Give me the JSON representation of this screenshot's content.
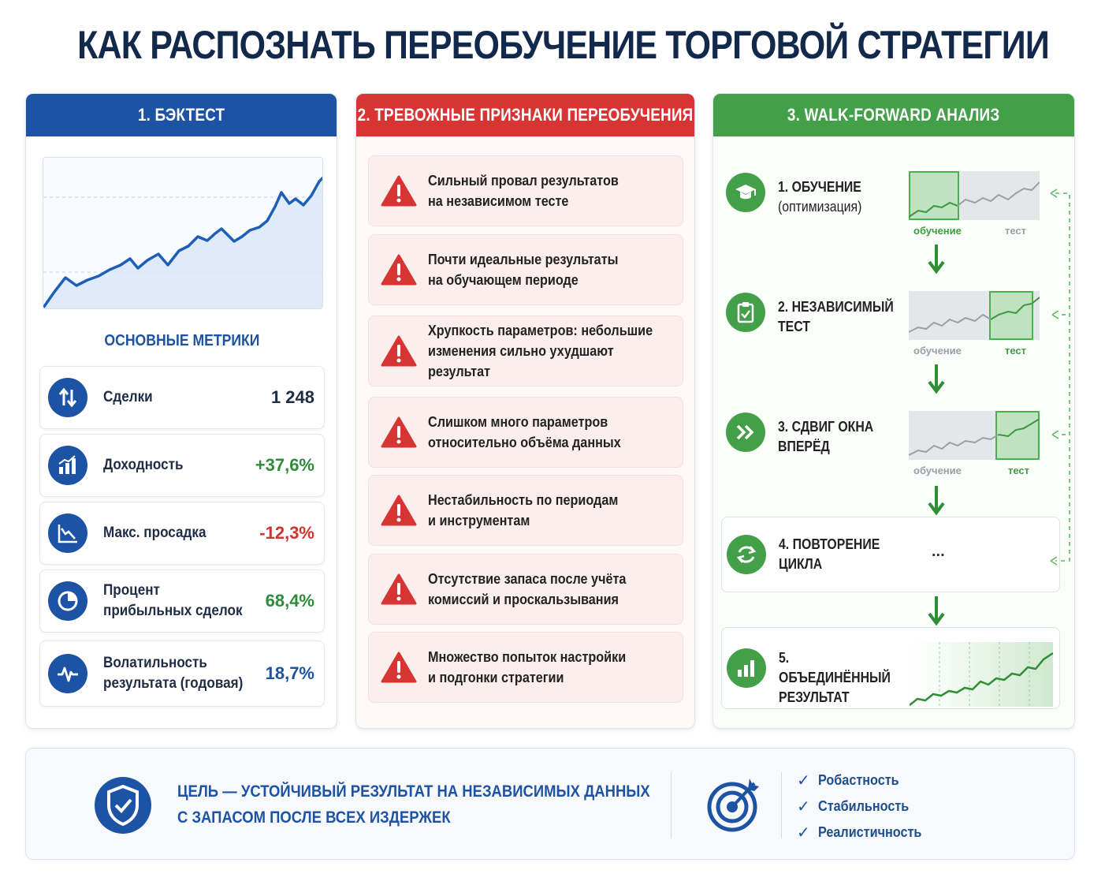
{
  "title": "КАК РАСПОЗНАТЬ ПЕРЕОБУЧЕНИЕ ТОРГОВОЙ СТРАТЕГИИ",
  "colors": {
    "blue": "#1d53a4",
    "red": "#d73533",
    "green": "#43a048"
  },
  "backtest": {
    "header": "1. БЭКТЕСТ",
    "metrics_title": "ОСНОВНЫЕ МЕТРИКИ",
    "metrics": [
      {
        "icon": "arrows-up-down-icon",
        "label": "Сделки",
        "value": "1 248",
        "color": "#1f2d44"
      },
      {
        "icon": "bar-chart-icon",
        "label": "Доходность",
        "value": "+37,6%",
        "color": "#2e8b3a"
      },
      {
        "icon": "drawdown-chart-icon",
        "label": "Макс. просадка",
        "value": "-12,3%",
        "color": "#d0342f"
      },
      {
        "icon": "pie-chart-icon",
        "label": "Процент прибыльных сделок",
        "value": "68,4%",
        "color": "#2e8b3a"
      },
      {
        "icon": "pulse-icon",
        "label": "Волатильность результата (годовая)",
        "value": "18,7%",
        "color": "#1d53a4"
      }
    ]
  },
  "warnings": {
    "header": "2. ТРЕВОЖНЫЕ ПРИЗНАКИ ПЕРЕОБУЧЕНИЯ",
    "items": [
      {
        "line1": "Сильный провал результатов",
        "line2": "на независимом тесте"
      },
      {
        "line1": "Почти идеальные результаты",
        "line2": "на обучающем периоде"
      },
      {
        "line1": "Хрупкость параметров: небольшие",
        "line2": "изменения сильно ухудшают результат"
      },
      {
        "line1": "Слишком много параметров",
        "line2": "относительно объёма данных"
      },
      {
        "line1": "Нестабильность по периодам",
        "line2": "и инструментам"
      },
      {
        "line1": "Отсутствие запаса после учёта",
        "line2": "комиссий и проскальзывания"
      },
      {
        "line1": "Множество попыток настройки",
        "line2": "и подгонки стратегии"
      }
    ]
  },
  "walkforward": {
    "header": "3. WALK-FORWARD АНАЛИЗ",
    "steps": [
      {
        "icon": "graduation-cap-icon",
        "line1": "1. ОБУЧЕНИЕ",
        "line2": "(оптимизация)",
        "cap_train": "обучение",
        "cap_test": "тест"
      },
      {
        "icon": "clipboard-check-icon",
        "line1": "2. НЕЗАВИСИМЫЙ",
        "line2": "ТЕСТ",
        "cap_train": "обучение",
        "cap_test": "тест"
      },
      {
        "icon": "fast-forward-icon",
        "line1": "3. СДВИГ ОКНА",
        "line2": "ВПЕРЁД",
        "cap_train": "обучение",
        "cap_test": "тест"
      },
      {
        "icon": "refresh-icon",
        "line1": "4. ПОВТОРЕНИЕ",
        "line2": "ЦИКЛА",
        "ellipsis": "..."
      },
      {
        "icon": "bar-chart-icon",
        "line1": "5. ОБЪЕДИНЁННЫЙ",
        "line2": "РЕЗУЛЬТАТ"
      }
    ]
  },
  "footer": {
    "goal_line1": "ЦЕЛЬ — УСТОЙЧИВЫЙ РЕЗУЛЬТАТ НА НЕЗАВИСИМЫХ ДАННЫХ",
    "goal_line2": "С ЗАПАСОМ ПОСЛЕ ВСЕХ ИЗДЕРЖЕК",
    "checks": [
      "Робастность",
      "Стабильность",
      "Реалистичность"
    ]
  }
}
